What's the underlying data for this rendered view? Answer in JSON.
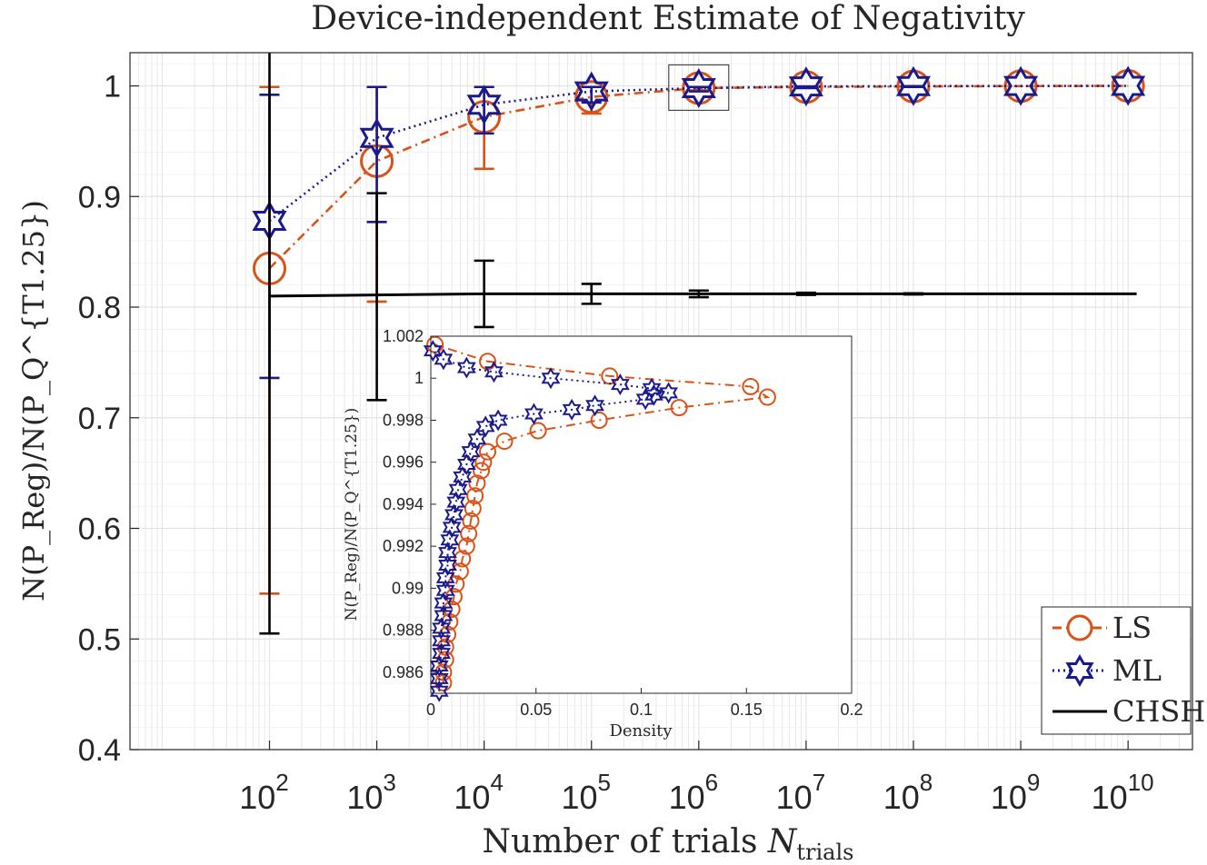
{
  "chart_data": [
    {
      "type": "line",
      "title": "Device-independent Estimate of Negativity",
      "xlabel": "Number of trials N_trials",
      "xlabel_main": "Number of trials ",
      "xlabel_var": "N",
      "xlabel_sub": "trials",
      "ylabel": "N(P_Reg)/N(P_Q^{T1.25})",
      "xscale": "log10",
      "x_exponents": [
        2,
        3,
        4,
        5,
        6,
        7,
        8,
        9,
        10
      ],
      "x_tick_base": "10",
      "xlim_exp": [
        0.7,
        10.6
      ],
      "ylim": [
        0.4,
        1.03
      ],
      "y_ticks": [
        0.4,
        0.5,
        0.6,
        0.7,
        0.8,
        0.9,
        1
      ],
      "y_tick_labels": [
        "0.4",
        "0.5",
        "0.6",
        "0.7",
        "0.8",
        "0.9",
        "1"
      ],
      "grid": true,
      "legend_position": "bottom-right",
      "series": [
        {
          "name": "LS",
          "color": "#d95319",
          "marker": "circle",
          "line": "dashdot",
          "x_exp": [
            2,
            3,
            4,
            5,
            6,
            7,
            8,
            9,
            10
          ],
          "values": [
            0.835,
            0.932,
            0.972,
            0.99,
            0.998,
            0.999,
            0.9995,
            0.9998,
            1.0
          ],
          "err_low": [
            0.541,
            0.805,
            0.925,
            0.975,
            0.996,
            0.9985,
            0.9993,
            0.9997,
            0.9999
          ],
          "err_high": [
            0.999,
            0.999,
            0.999,
            0.999,
            0.999,
            0.9995,
            0.9998,
            0.9999,
            1.0
          ]
        },
        {
          "name": "ML",
          "color": "#1a1a8c",
          "marker": "hexagram",
          "line": "dotted",
          "x_exp": [
            2,
            3,
            4,
            5,
            6,
            7,
            8,
            9,
            10
          ],
          "values": [
            0.878,
            0.953,
            0.983,
            0.995,
            0.998,
            0.9995,
            0.9998,
            0.9999,
            1.0
          ],
          "err_low": [
            0.736,
            0.877,
            0.957,
            0.985,
            0.995,
            0.998,
            0.999,
            0.9995,
            0.9998
          ],
          "err_high": [
            0.992,
            0.999,
            0.999,
            0.999,
            0.999,
            0.9995,
            0.9998,
            0.9999,
            1.0
          ]
        },
        {
          "name": "CHSH",
          "color": "#000000",
          "marker": "none",
          "line": "solid",
          "x_exp": [
            2,
            3,
            4,
            5,
            6,
            7,
            8,
            9,
            10
          ],
          "values": [
            0.81,
            0.811,
            0.812,
            0.812,
            0.812,
            0.812,
            0.812,
            0.812,
            0.812
          ],
          "err_low": [
            0.505,
            0.716,
            0.782,
            0.803,
            0.809,
            0.811,
            0.8115,
            0.812,
            0.812
          ],
          "err_high": [
            1.05,
            0.903,
            0.842,
            0.821,
            0.815,
            0.813,
            0.8125,
            0.812,
            0.812
          ]
        }
      ],
      "highlight_box": {
        "x_exp": 6,
        "y": 0.9985
      }
    },
    {
      "type": "line",
      "title": "",
      "xlabel": "Density",
      "ylabel": "N(P_Reg)/N(P_Q^{T1.25})",
      "xlim": [
        0,
        0.2
      ],
      "ylim": [
        0.985,
        1.002
      ],
      "x_ticks": [
        0,
        0.05,
        0.1,
        0.15,
        0.2
      ],
      "x_tick_labels": [
        "0",
        "0.05",
        "0.1",
        "0.15",
        "0.2"
      ],
      "y_ticks": [
        0.986,
        0.988,
        0.99,
        0.992,
        0.994,
        0.996,
        0.998,
        1,
        1.002
      ],
      "y_tick_labels": [
        "0.986",
        "0.988",
        "0.99",
        "0.992",
        "0.994",
        "0.996",
        "0.998",
        "1",
        "1.002"
      ],
      "grid": false,
      "series": [
        {
          "name": "LS",
          "color": "#d95319",
          "marker": "circle",
          "line": "dashdot",
          "points": [
            [
              0.006,
              0.9855
            ],
            [
              0.006,
              0.986
            ],
            [
              0.007,
              0.9866
            ],
            [
              0.007,
              0.9872
            ],
            [
              0.008,
              0.9878
            ],
            [
              0.009,
              0.9884
            ],
            [
              0.01,
              0.989
            ],
            [
              0.011,
              0.9896
            ],
            [
              0.012,
              0.9902
            ],
            [
              0.014,
              0.9908
            ],
            [
              0.015,
              0.9914
            ],
            [
              0.017,
              0.992
            ],
            [
              0.018,
              0.9926
            ],
            [
              0.019,
              0.9932
            ],
            [
              0.02,
              0.9938
            ],
            [
              0.021,
              0.9944
            ],
            [
              0.022,
              0.995
            ],
            [
              0.024,
              0.9956
            ],
            [
              0.025,
              0.996
            ],
            [
              0.027,
              0.9965
            ],
            [
              0.035,
              0.997
            ],
            [
              0.051,
              0.9975
            ],
            [
              0.08,
              0.998
            ],
            [
              0.118,
              0.9986
            ],
            [
              0.16,
              0.9991
            ],
            [
              0.152,
              0.9996
            ],
            [
              0.085,
              1.0001
            ],
            [
              0.027,
              1.0008
            ],
            [
              0.002,
              1.0016
            ]
          ]
        },
        {
          "name": "ML",
          "color": "#1a1a8c",
          "marker": "hexagram",
          "line": "dotted",
          "points": [
            [
              0.004,
              0.9851
            ],
            [
              0.004,
              0.9857
            ],
            [
              0.004,
              0.9863
            ],
            [
              0.005,
              0.9869
            ],
            [
              0.005,
              0.9875
            ],
            [
              0.005,
              0.9881
            ],
            [
              0.006,
              0.9887
            ],
            [
              0.006,
              0.9893
            ],
            [
              0.007,
              0.9899
            ],
            [
              0.007,
              0.9905
            ],
            [
              0.008,
              0.9911
            ],
            [
              0.008,
              0.9917
            ],
            [
              0.009,
              0.9923
            ],
            [
              0.01,
              0.9929
            ],
            [
              0.011,
              0.9935
            ],
            [
              0.012,
              0.9941
            ],
            [
              0.013,
              0.9947
            ],
            [
              0.015,
              0.9953
            ],
            [
              0.017,
              0.9959
            ],
            [
              0.019,
              0.9965
            ],
            [
              0.022,
              0.9971
            ],
            [
              0.026,
              0.9977
            ],
            [
              0.032,
              0.998
            ],
            [
              0.049,
              0.9983
            ],
            [
              0.067,
              0.9985
            ],
            [
              0.078,
              0.9987
            ],
            [
              0.102,
              0.999
            ],
            [
              0.106,
              0.9992
            ],
            [
              0.113,
              0.9993
            ],
            [
              0.105,
              0.9995
            ],
            [
              0.09,
              0.9997
            ],
            [
              0.057,
              1.0
            ],
            [
              0.03,
              1.0003
            ],
            [
              0.017,
              1.0005
            ],
            [
              0.006,
              1.0009
            ],
            [
              0.001,
              1.0013
            ]
          ]
        }
      ]
    }
  ],
  "legend": {
    "items": [
      "LS",
      "ML",
      "CHSH"
    ]
  }
}
